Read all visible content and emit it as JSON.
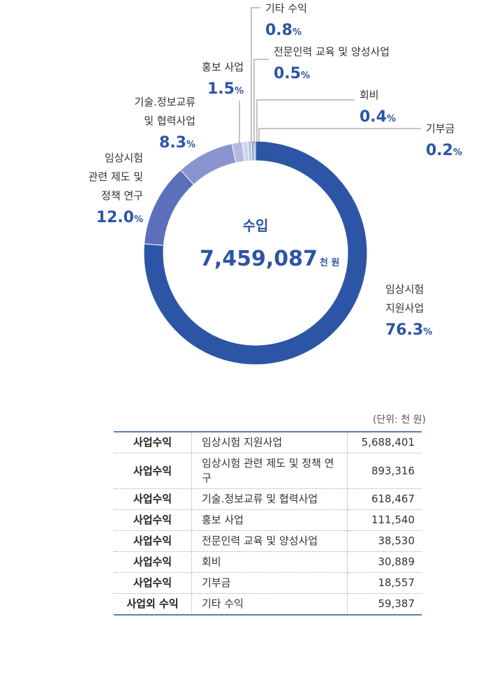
{
  "chart_data": {
    "type": "pie",
    "style": "donut",
    "center": {
      "title": "수입",
      "value": "7,459,087",
      "unit": "천 원"
    },
    "slices": [
      {
        "label": [
          "임상시험",
          "지원사업"
        ],
        "value": 76.3,
        "color": "#2d55a6"
      },
      {
        "label": [
          "임상시험",
          "관련 제도 및",
          "정책 연구"
        ],
        "value": 12.0,
        "color": "#5b6fbb"
      },
      {
        "label": [
          "기술.정보교류",
          "및 협력사업"
        ],
        "value": 8.3,
        "color": "#8893cf"
      },
      {
        "label": [
          "홍보 사업"
        ],
        "value": 1.5,
        "color": "#b3b9e1"
      },
      {
        "label": [
          "기타 수익"
        ],
        "value": 0.8,
        "color": "#cfd3ee"
      },
      {
        "label": [
          "전문인력 교육 및 양성사업"
        ],
        "value": 0.5,
        "color": "#b7c2e6"
      },
      {
        "label": [
          "회비"
        ],
        "value": 0.4,
        "color": "#8ea1d6"
      },
      {
        "label": [
          "기부금"
        ],
        "value": 0.2,
        "color": "#6d84c6"
      }
    ],
    "percent_format": [
      "76.3",
      "12.0",
      "8.3",
      "1.5",
      "0.8",
      "0.5",
      "0.4",
      "0.2"
    ],
    "percent_unit": "%"
  },
  "table": {
    "unit_note": "(단위: 천 원)",
    "rows": [
      {
        "category": "사업수익",
        "item": "임상시험 지원사업",
        "amount": "5,688,401"
      },
      {
        "category": "사업수익",
        "item": "임상시험 관련 제도 및 정책 연구",
        "amount": "893,316"
      },
      {
        "category": "사업수익",
        "item": "기술.정보교류 및 협력사업",
        "amount": "618,467"
      },
      {
        "category": "사업수익",
        "item": "홍보 사업",
        "amount": "111,540"
      },
      {
        "category": "사업수익",
        "item": "전문인력 교육 및 양성사업",
        "amount": "38,530"
      },
      {
        "category": "사업수익",
        "item": "회비",
        "amount": "30,889"
      },
      {
        "category": "사업수익",
        "item": "기부금",
        "amount": "18,557"
      },
      {
        "category": "사업외 수익",
        "item": "기타 수익",
        "amount": "59,387"
      }
    ]
  }
}
